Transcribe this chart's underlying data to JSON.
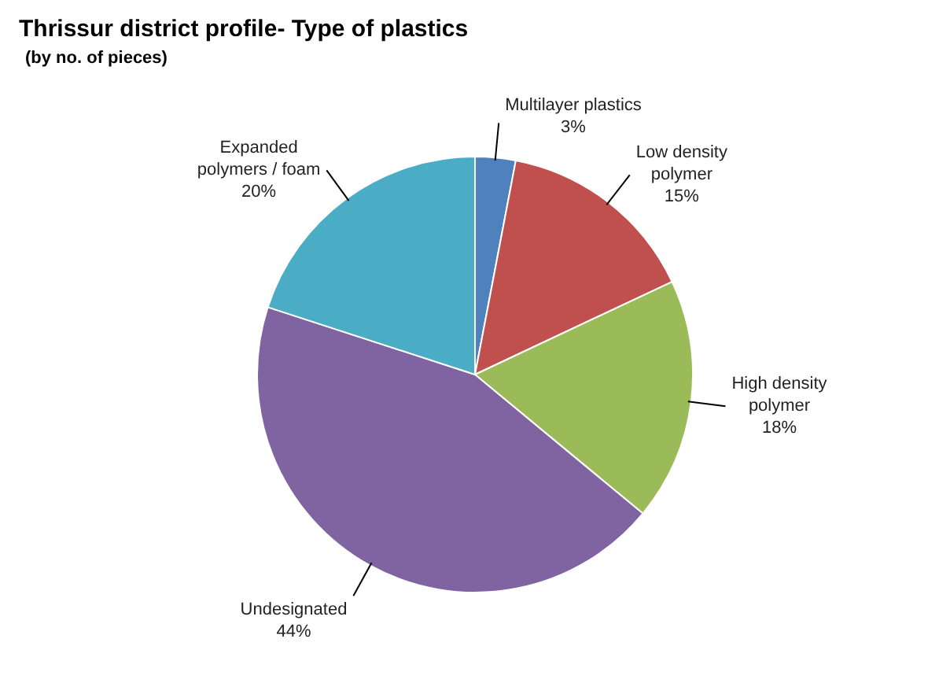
{
  "chart_data": {
    "type": "pie",
    "title": "Thrissur district profile- Type of plastics",
    "subtitle": "(by no. of pieces)",
    "categories": [
      "Multilayer plastics",
      "Low density polymer",
      "High density polymer",
      "Undesignated",
      "Expanded polymers / foam"
    ],
    "values": [
      3,
      15,
      18,
      44,
      20
    ],
    "colors": [
      "#4f81bd",
      "#c0504d",
      "#9bbb59",
      "#8064a2",
      "#4bacc6"
    ],
    "value_labels": [
      "3%",
      "15%",
      "18%",
      "44%",
      "20%"
    ],
    "legend": false
  }
}
